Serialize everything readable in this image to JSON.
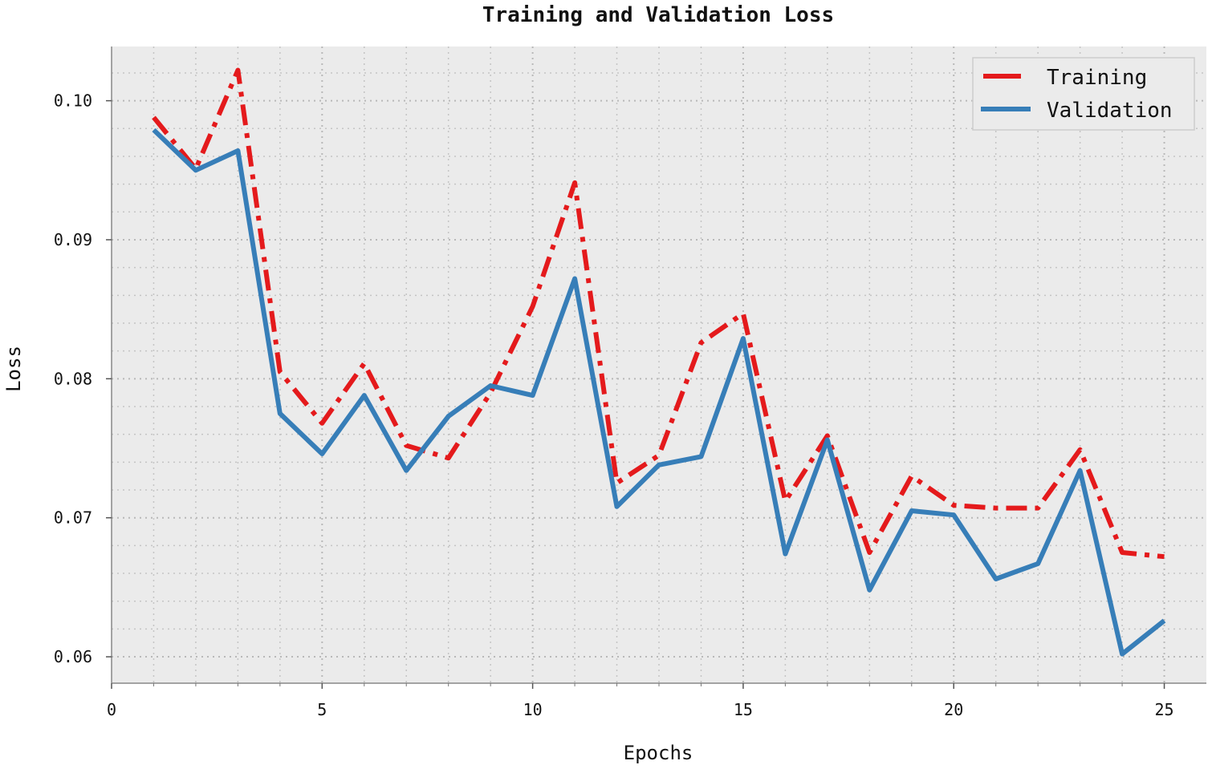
{
  "chart_data": {
    "type": "line",
    "title": "Training and Validation Loss",
    "xlabel": "Epochs",
    "ylabel": "Loss",
    "xlim": [
      0,
      26
    ],
    "ylim": [
      0.0581,
      0.1039
    ],
    "xticks": [
      0,
      5,
      10,
      15,
      20,
      25
    ],
    "yticks": [
      0.06,
      0.07,
      0.08,
      0.09,
      0.1
    ],
    "ytick_labels": [
      "0.06",
      "0.07",
      "0.08",
      "0.09",
      "0.10"
    ],
    "grid": true,
    "legend_position": "top-right",
    "x": [
      1,
      2,
      3,
      4,
      5,
      6,
      7,
      8,
      9,
      10,
      11,
      12,
      13,
      14,
      15,
      16,
      17,
      18,
      19,
      20,
      21,
      22,
      23,
      24,
      25
    ],
    "series": [
      {
        "name": "Training",
        "color": "#e41a1c",
        "style": "dashdot",
        "values": [
          0.0988,
          0.0951,
          0.1022,
          0.0805,
          0.0768,
          0.0811,
          0.0752,
          0.0743,
          0.079,
          0.0852,
          0.0941,
          0.0725,
          0.0745,
          0.0826,
          0.0847,
          0.0712,
          0.0759,
          0.0675,
          0.073,
          0.0709,
          0.0707,
          0.0707,
          0.0749,
          0.0675,
          0.0672
        ]
      },
      {
        "name": "Validation",
        "color": "#377eb8",
        "style": "solid",
        "values": [
          0.0979,
          0.095,
          0.0964,
          0.0775,
          0.0746,
          0.0788,
          0.0734,
          0.0773,
          0.0795,
          0.0788,
          0.0872,
          0.0708,
          0.0738,
          0.0744,
          0.0829,
          0.0674,
          0.0756,
          0.0648,
          0.0705,
          0.0702,
          0.0656,
          0.0667,
          0.0734,
          0.0602,
          0.0626
        ]
      }
    ]
  }
}
